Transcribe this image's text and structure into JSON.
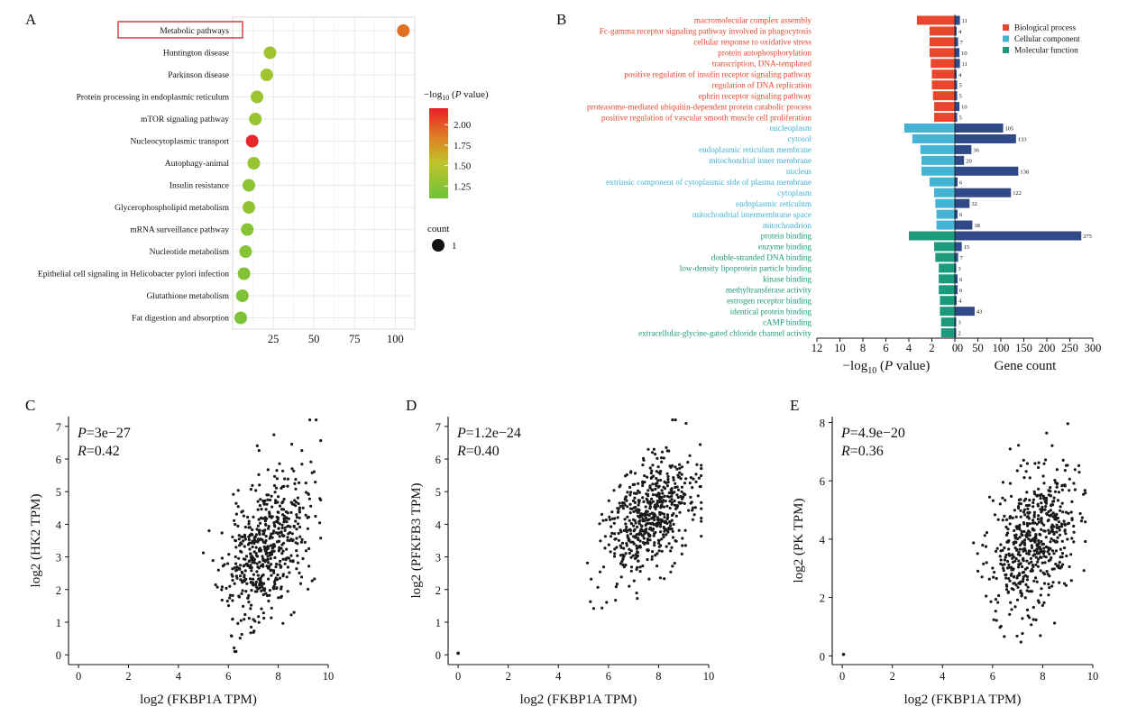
{
  "chart_data": [
    {
      "panel": "A",
      "type": "scatter",
      "categories": [
        "Metabolic pathways",
        "Huntington disease",
        "Parkinson disease",
        "Protein processing in endoplasmic reticulum",
        "mTOR signaling pathway",
        "Nucleocytoplasmic transport",
        "Autophagy-animal",
        "Insulin resistance",
        "Glycerophospholipid metabolism",
        "mRNA surveillance pathway",
        "Nucleotide metabolism",
        "Epithelial cell signaling in Helicobacter pylori infection",
        "Glutathione metabolism",
        "Fat digestion and absorption"
      ],
      "x": [
        105,
        23,
        21,
        15,
        14,
        12,
        13,
        10,
        10,
        9,
        8,
        7,
        6,
        5
      ],
      "color_value": [
        1.92,
        1.4,
        1.42,
        1.38,
        1.37,
        2.18,
        1.36,
        1.3,
        1.33,
        1.28,
        1.27,
        1.25,
        1.24,
        1.23
      ],
      "xticks": [
        "25",
        "50",
        "75",
        "100"
      ],
      "xlim": [
        0,
        112
      ],
      "highlighted": "Metabolic pathways",
      "colorbar_title_prefix": "−log",
      "colorbar_title_sub": "10",
      "colorbar_title_p": "P",
      "colorbar_title_suffix": " value)",
      "colorbar_title_open": "(",
      "colorbar_ticks": [
        "2.00",
        "1.75",
        "1.50",
        "1.25"
      ],
      "size_legend_title": "count",
      "size_legend_value": "1",
      "grid": true
    },
    {
      "panel": "B",
      "type": "bar",
      "categories": [
        "macromolecular complex assembly",
        "Fc-gamma receptor signaling pathway involved in phagocytosis",
        "cellular response to oxidative stress",
        "protein autophosphorylation",
        "transcription, DNA-templated",
        "positive regulation of insulin receptor signaling pathway",
        "regulation of DNA replication",
        "ephrin receptor signaling pathway",
        "proteasome-mediated ubiquitin-dependent protein catabolic process",
        "positive regulation of vascular smooth muscle cell proliferation",
        "nucleoplasm",
        "cytosol",
        "endoplasmic reticulum membrane",
        "mitochondrial inner membrane",
        "nucleus",
        "extrinsic component of cytoplasmic side of plasma membrane",
        "cytoplasm",
        "endoplasmic reticulum",
        "mitochondrial intermembrane space",
        "mitochondrion",
        "protein binding",
        "enzyme binding",
        "double-stranded DNA binding",
        "low-density lipoprotein particle binding",
        "kinase binding",
        "methyltransferase activity",
        "estrogen receptor binding",
        "identical protein binding",
        "cAMP binding",
        "extracellular-glycine-gated chloride channel activity"
      ],
      "groups": [
        "BP",
        "BP",
        "BP",
        "BP",
        "BP",
        "BP",
        "BP",
        "BP",
        "BP",
        "BP",
        "CC",
        "CC",
        "CC",
        "CC",
        "CC",
        "CC",
        "CC",
        "CC",
        "CC",
        "CC",
        "MF",
        "MF",
        "MF",
        "MF",
        "MF",
        "MF",
        "MF",
        "MF",
        "MF",
        "MF"
      ],
      "neg_log10_p": [
        3.3,
        2.2,
        2.2,
        2.2,
        2.1,
        2.0,
        2.0,
        1.9,
        1.8,
        1.8,
        4.4,
        3.7,
        3.0,
        2.9,
        2.9,
        2.2,
        1.8,
        1.7,
        1.6,
        1.6,
        4.0,
        1.8,
        1.7,
        1.4,
        1.4,
        1.4,
        1.3,
        1.3,
        1.2,
        1.2
      ],
      "gene_count": [
        11,
        4,
        7,
        10,
        11,
        4,
        5,
        5,
        10,
        5,
        105,
        133,
        36,
        20,
        138,
        6,
        122,
        32,
        6,
        38,
        275,
        15,
        7,
        3,
        6,
        6,
        4,
        43,
        3,
        2
      ],
      "count_labels": [
        "11",
        "4",
        "7",
        "10",
        "11",
        "4",
        "5",
        "5",
        "10",
        "5",
        "105",
        "133",
        "36",
        "20",
        "138",
        "6",
        "122",
        "32",
        "6",
        "38",
        "275",
        "15",
        "7",
        "3",
        "6",
        "6",
        "4",
        "43",
        "3",
        "2"
      ],
      "left_ticks": [
        "12",
        "10",
        "8",
        "6",
        "4",
        "2",
        "0"
      ],
      "right_ticks": [
        "0",
        "50",
        "100",
        "150",
        "200",
        "250",
        "300"
      ],
      "left_xlim": [
        0,
        12
      ],
      "right_xlim": [
        0,
        300
      ],
      "xlabel_left_prefix": "−log",
      "xlabel_left_sub": "10",
      "xlabel_left_open": " (",
      "xlabel_left_p": "P",
      "xlabel_left_suffix": " value)",
      "xlabel_right": "Gene count",
      "legend": [
        "Biological process",
        "Cellular component",
        "Molecular function"
      ],
      "legend_position": "top-right"
    },
    {
      "panel": "C",
      "type": "scatter",
      "xlabel": "log2 (FKBP1A TPM)",
      "ylabel": "log2 (HK2 TPM)",
      "xlim": [
        -0.4,
        10
      ],
      "ylim": [
        -0.3,
        7.3
      ],
      "xticks": [
        "0",
        "2",
        "4",
        "6",
        "8",
        "10"
      ],
      "yticks": [
        "0",
        "1",
        "2",
        "3",
        "4",
        "5",
        "6",
        "7"
      ],
      "stat_p_label": "P",
      "stat_p_value": "=3e−27",
      "stat_r_label": "R",
      "stat_r_value": "=0.42",
      "point_count": 560,
      "center": [
        7.5,
        3.3
      ],
      "sd": [
        0.85,
        1.15
      ],
      "r": 0.42,
      "seed": 11,
      "outliers": []
    },
    {
      "panel": "D",
      "type": "scatter",
      "xlabel": "log2 (FKBP1A TPM)",
      "ylabel": "log2 (PFKFB3 TPM)",
      "xlim": [
        -0.4,
        10
      ],
      "ylim": [
        -0.3,
        7.3
      ],
      "xticks": [
        "0",
        "2",
        "4",
        "6",
        "8",
        "10"
      ],
      "yticks": [
        "0",
        "1",
        "2",
        "3",
        "4",
        "5",
        "6",
        "7"
      ],
      "stat_p_label": "P",
      "stat_p_value": "=1.2e−24",
      "stat_r_label": "R",
      "stat_r_value": "=0.40",
      "point_count": 560,
      "center": [
        7.6,
        4.2
      ],
      "sd": [
        0.85,
        0.9
      ],
      "r": 0.4,
      "seed": 23,
      "outliers": [
        [
          0.0,
          0.05
        ]
      ]
    },
    {
      "panel": "E",
      "type": "scatter",
      "xlabel": "log2 (FKBP1A TPM)",
      "ylabel": "log2 (PK TPM)",
      "xlim": [
        -0.4,
        10
      ],
      "ylim": [
        -0.3,
        8.2
      ],
      "xticks": [
        "0",
        "2",
        "4",
        "6",
        "8",
        "10"
      ],
      "yticks": [
        "0",
        "2",
        "4",
        "6",
        "8"
      ],
      "stat_p_label": "P",
      "stat_p_value": "=4.9e−20",
      "stat_r_label": "R",
      "stat_r_value": "=0.36",
      "point_count": 560,
      "center": [
        7.7,
        4.0
      ],
      "sd": [
        0.85,
        1.25
      ],
      "r": 0.36,
      "seed": 37,
      "outliers": [
        [
          0.05,
          0.05
        ]
      ]
    }
  ],
  "colors": {
    "bp": "#e8472e",
    "cc": "#45b3d3",
    "mf": "#1c9a7c",
    "count_bar": "#2f4a87",
    "grid": "#e3e3e3",
    "highlight_box": "#c8232c",
    "dot": "#1a1a1a"
  }
}
